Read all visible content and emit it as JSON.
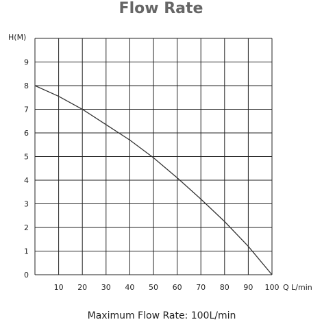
{
  "chart_data": {
    "type": "line",
    "title": "Flow Rate",
    "subtitle": "Maximum Flow Rate: 100L/min",
    "xlabel": "Q L/min",
    "ylabel": "H(M)",
    "xlim": [
      0,
      100
    ],
    "ylim": [
      0,
      10
    ],
    "x_ticks": [
      "10",
      "20",
      "30",
      "40",
      "50",
      "60",
      "70",
      "80",
      "90",
      "100"
    ],
    "y_ticks": [
      "0",
      "1",
      "2",
      "3",
      "4",
      "5",
      "6",
      "7",
      "8",
      "9"
    ],
    "grid": true,
    "series": [
      {
        "x": [
          0,
          10,
          20,
          30,
          40,
          50,
          60,
          70,
          80,
          90,
          100
        ],
        "y": [
          8.0,
          7.55,
          7.0,
          6.35,
          5.7,
          4.95,
          4.1,
          3.2,
          2.25,
          1.2,
          0
        ]
      }
    ]
  }
}
